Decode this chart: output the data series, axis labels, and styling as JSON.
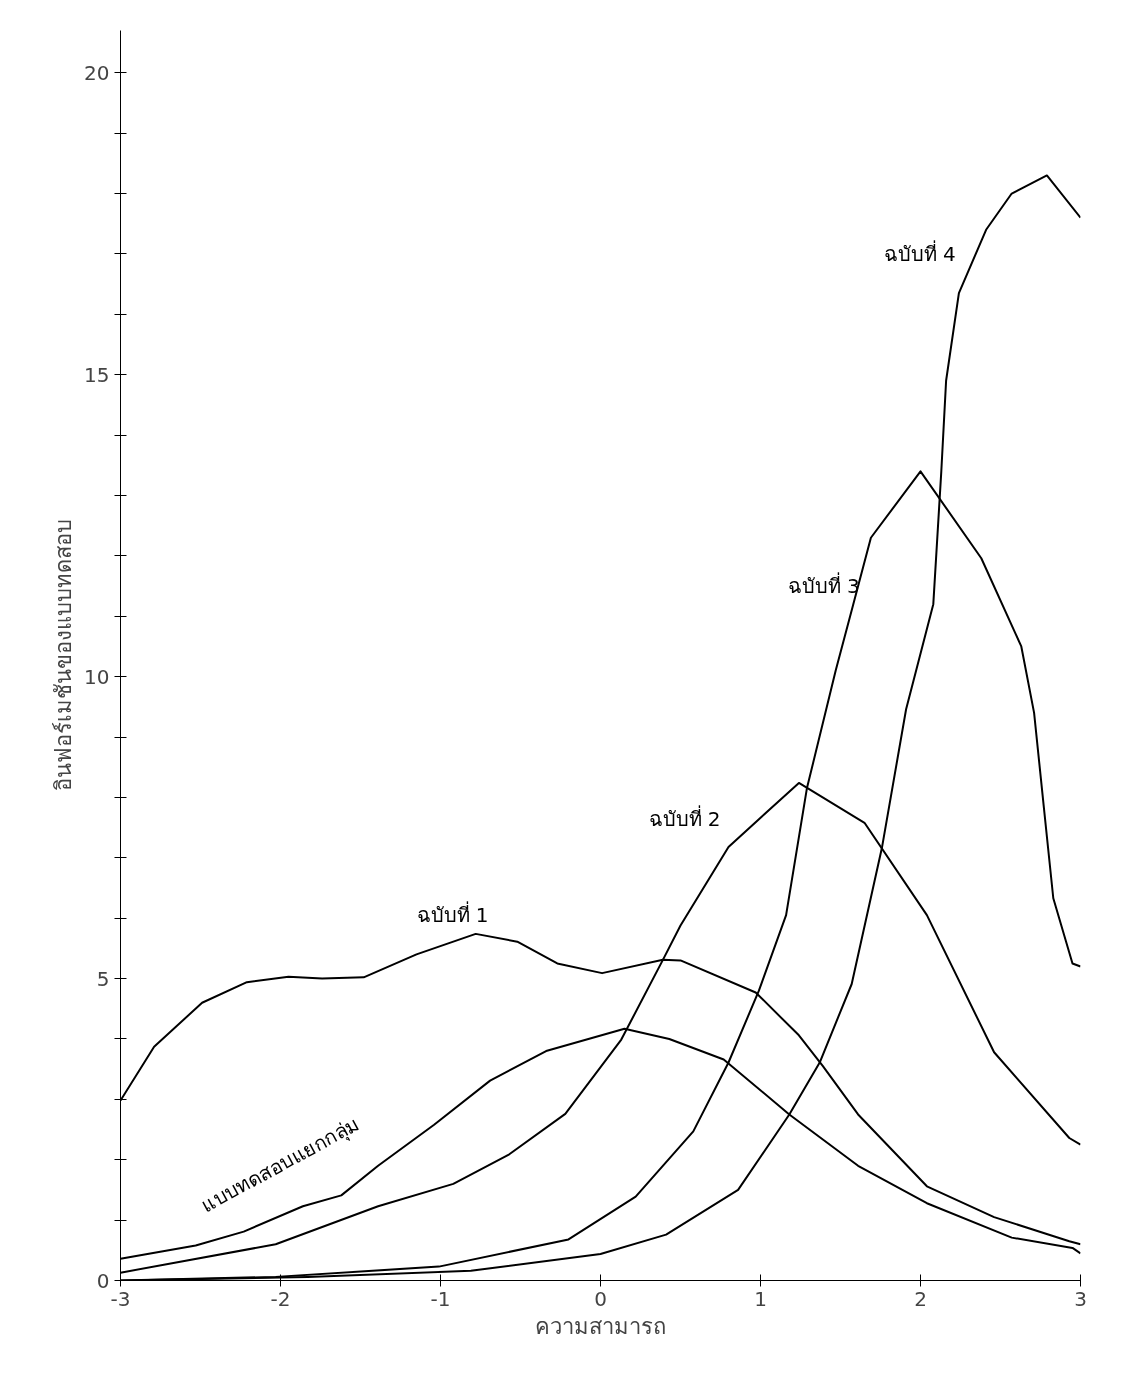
{
  "chart_data": {
    "type": "line",
    "xlabel": "ความสามารถ",
    "ylabel": "อินฟอร์เมชันของแบบทดสอบ",
    "xlim": [
      -3,
      3
    ],
    "ylim": [
      0,
      20.7
    ],
    "xticks": [
      -3,
      -2,
      -1,
      0,
      1,
      2,
      3
    ],
    "yticks": [
      0,
      {
        "value": 1,
        "label": null
      },
      {
        "value": 2,
        "label": null
      },
      {
        "value": 3,
        "label": null
      },
      {
        "value": 4,
        "label": null
      },
      5,
      {
        "value": 6,
        "label": null
      },
      {
        "value": 7,
        "label": null
      },
      {
        "value": 8,
        "label": null
      },
      {
        "value": 9,
        "label": null
      },
      10,
      {
        "value": 11,
        "label": null
      },
      {
        "value": 12,
        "label": null
      },
      {
        "value": 13,
        "label": null
      },
      {
        "value": 14,
        "label": null
      },
      15,
      {
        "value": 16,
        "label": null
      },
      {
        "value": 17,
        "label": null
      },
      {
        "value": 18,
        "label": null
      },
      {
        "value": 19,
        "label": null
      },
      20
    ],
    "grid": false,
    "marker": "none",
    "line_style": "solid",
    "series": [
      {
        "name": "ฉบับที่ 1",
        "color": "#000000",
        "x": [
          -3,
          -2.79,
          -2.49,
          -2.21,
          -1.95,
          -1.74,
          -1.48,
          -1.15,
          -0.78,
          -0.52,
          -0.27,
          0.01,
          0.39,
          0.5,
          0.97,
          1.24,
          1.39,
          1.61,
          2.04,
          2.46,
          2.93,
          3
        ],
        "values": [
          2.98,
          3.87,
          4.6,
          4.94,
          5.03,
          5.0,
          5.02,
          5.4,
          5.74,
          5.61,
          5.25,
          5.09,
          5.31,
          5.3,
          4.77,
          4.06,
          3.55,
          2.75,
          1.56,
          1.05,
          0.65,
          0.6
        ]
      },
      {
        "name": "ฉบับที่ 2",
        "color": "#000000",
        "x": [
          -3,
          -2.03,
          -1.39,
          -0.92,
          -0.57,
          -0.22,
          0.13,
          0.39,
          0.5,
          0.8,
          1.24,
          1.65,
          2.04,
          2.46,
          2.93,
          3
        ],
        "values": [
          0.13,
          0.6,
          1.23,
          1.6,
          2.09,
          2.76,
          3.99,
          5.31,
          5.88,
          7.18,
          8.24,
          7.58,
          6.05,
          3.78,
          2.36,
          2.25
        ]
      },
      {
        "name": "ฉบับที่ 3",
        "color": "#000000",
        "x": [
          -3,
          -2.03,
          -1.01,
          -0.2,
          0.22,
          0.58,
          0.8,
          0.99,
          1.16,
          1.29,
          1.47,
          1.58,
          1.69,
          2.0,
          2.38,
          2.63,
          2.71,
          2.77,
          2.83,
          2.95,
          3
        ],
        "values": [
          0,
          0.06,
          0.23,
          0.68,
          1.39,
          2.47,
          3.61,
          4.8,
          6.05,
          8.15,
          10.1,
          11.2,
          12.3,
          13.4,
          11.96,
          10.5,
          9.4,
          7.86,
          6.33,
          5.25,
          5.2
        ]
      },
      {
        "name": "ฉบับที่ 4",
        "color": "#000000",
        "x": [
          -3,
          -1.83,
          -0.81,
          0,
          0.41,
          0.86,
          1.18,
          1.37,
          1.57,
          1.76,
          1.91,
          2.08,
          2.13,
          2.16,
          2.24,
          2.41,
          2.57,
          2.79,
          3
        ],
        "values": [
          0,
          0.06,
          0.16,
          0.44,
          0.76,
          1.5,
          2.75,
          3.61,
          4.91,
          7.18,
          9.46,
          11.2,
          13.4,
          14.9,
          16.35,
          17.4,
          18.0,
          18.3,
          17.6
        ]
      },
      {
        "name": "แบบทดสอบแยกกลุ่ม",
        "color": "#000000",
        "x": [
          -3,
          -2.53,
          -2.23,
          -1.86,
          -1.62,
          -1.39,
          -1.04,
          -0.69,
          -0.34,
          0.15,
          0.43,
          0.77,
          1.18,
          1.61,
          2.04,
          2.57,
          2.95,
          3
        ],
        "values": [
          0.36,
          0.58,
          0.81,
          1.23,
          1.41,
          1.9,
          2.58,
          3.31,
          3.8,
          4.17,
          4.0,
          3.66,
          2.75,
          1.9,
          1.28,
          0.71,
          0.54,
          0.45
        ]
      }
    ]
  }
}
